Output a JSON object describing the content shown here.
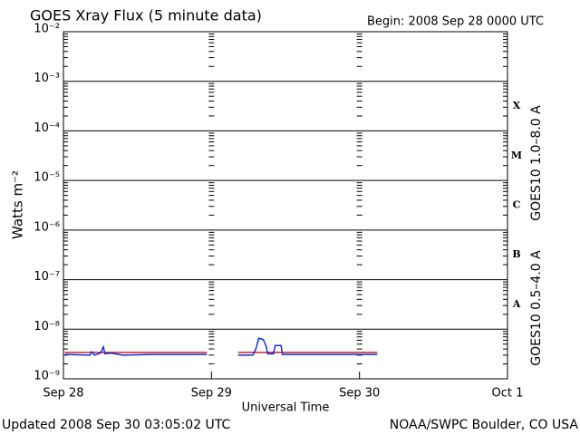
{
  "chart_data": {
    "type": "line",
    "title": "GOES Xray Flux (5 minute data)",
    "begin_label": "Begin:  2008 Sep 28 0000 UTC",
    "ylabel": "Watts m⁻²",
    "xlabel": "Universal Time",
    "footer_left": "Updated 2008 Sep 30 03:05:02 UTC",
    "footer_right": "NOAA/SWPC Boulder, CO USA",
    "log_y": true,
    "grid": true,
    "xlim": [
      0,
      3
    ],
    "xticks": [
      {
        "value": 0,
        "label": "Sep 28"
      },
      {
        "value": 1,
        "label": "Sep 29"
      },
      {
        "value": 2,
        "label": "Sep 30"
      },
      {
        "value": 3,
        "label": "Oct 1"
      }
    ],
    "ylim": [
      1e-09,
      0.01
    ],
    "yticks": [
      {
        "value": 1e-09,
        "label": "10⁻⁹"
      },
      {
        "value": 1e-08,
        "label": "10⁻⁸"
      },
      {
        "value": 1e-07,
        "label": "10⁻⁷"
      },
      {
        "value": 1e-06,
        "label": "10⁻⁶"
      },
      {
        "value": 1e-05,
        "label": "10⁻⁵"
      },
      {
        "value": 0.0001,
        "label": "10⁻⁴"
      },
      {
        "value": 0.001,
        "label": "10⁻³"
      },
      {
        "value": 0.01,
        "label": "10⁻²"
      }
    ],
    "flare_classes": [
      {
        "label": "A",
        "value": 1e-08
      },
      {
        "label": "B",
        "value": 1e-07
      },
      {
        "label": "C",
        "value": 1e-06
      },
      {
        "label": "M",
        "value": 1e-05
      },
      {
        "label": "X",
        "value": 0.0001
      }
    ],
    "series": [
      {
        "name": "GOES10 1.0–8.0 A",
        "color": "#d42020",
        "x": [
          0.01,
          0.97,
          1.05,
          1.18,
          2.12
        ],
        "values": [
          3.4e-09,
          3.4e-09,
          null,
          3.4e-09,
          3.4e-09
        ]
      },
      {
        "name": "GOES10 0.5–4.0 A",
        "color": "#1030e0",
        "x": [
          0.01,
          0.18,
          0.19,
          0.21,
          0.25,
          0.27,
          0.28,
          0.32,
          0.4,
          0.6,
          0.8,
          0.97,
          1.05,
          1.18,
          1.28,
          1.3,
          1.32,
          1.35,
          1.37,
          1.38,
          1.42,
          1.43,
          1.47,
          1.48,
          1.7,
          1.9,
          2.12
        ],
        "values": [
          3.1e-09,
          3e-09,
          3.5e-09,
          3e-09,
          3.3e-09,
          4.4e-09,
          3.2e-09,
          3.3e-09,
          3e-09,
          3.1e-09,
          3.1e-09,
          3.1e-09,
          null,
          3e-09,
          3e-09,
          4e-09,
          6.6e-09,
          6.2e-09,
          4.5e-09,
          3.2e-09,
          3.2e-09,
          4.7e-09,
          4.7e-09,
          3.1e-09,
          3.1e-09,
          3.1e-09,
          3.1e-09
        ]
      }
    ]
  }
}
